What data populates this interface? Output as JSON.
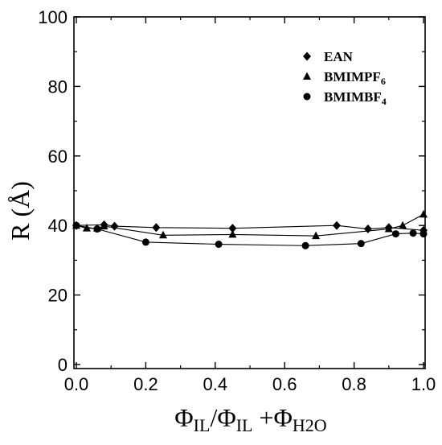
{
  "chart_data": {
    "type": "line",
    "xlabel": {
      "main": "Φ",
      "sub1": "IL",
      "mid": "/Φ",
      "sub2": "IL",
      "plus": " +Φ",
      "sub3": "H2O"
    },
    "ylabel": "R (Å)",
    "xlim": [
      0,
      1.0
    ],
    "ylim": [
      0,
      100
    ],
    "x_ticks": [
      "0.0",
      "0.2",
      "0.4",
      "0.6",
      "0.8",
      "1.0"
    ],
    "y_ticks": [
      "0",
      "20",
      "40",
      "60",
      "80",
      "100"
    ],
    "legend_position": "top-right",
    "series": [
      {
        "name": "EAN",
        "name_sub": "",
        "marker": "diamond",
        "x": [
          0.0,
          0.08,
          0.11,
          0.23,
          0.45,
          0.75,
          0.84,
          0.9,
          1.0
        ],
        "y": [
          40,
          40.2,
          39.8,
          39.4,
          39.2,
          40.0,
          39.0,
          39.4,
          38.6
        ]
      },
      {
        "name": "BMIMPF",
        "name_sub": "6",
        "marker": "triangle",
        "x": [
          0.0,
          0.03,
          0.06,
          0.08,
          0.25,
          0.45,
          0.69,
          0.9,
          0.94,
          1.0
        ],
        "y": [
          40,
          39.2,
          39.2,
          39.8,
          37.2,
          37.4,
          37.0,
          39.0,
          40.0,
          43.2
        ]
      },
      {
        "name": "BMIMBF",
        "name_sub": "4",
        "marker": "circle",
        "x": [
          0.0,
          0.06,
          0.2,
          0.41,
          0.66,
          0.82,
          0.92,
          0.97,
          1.0
        ],
        "y": [
          40,
          39.0,
          35.2,
          34.6,
          34.2,
          34.8,
          37.6,
          37.8,
          37.6
        ]
      }
    ]
  }
}
